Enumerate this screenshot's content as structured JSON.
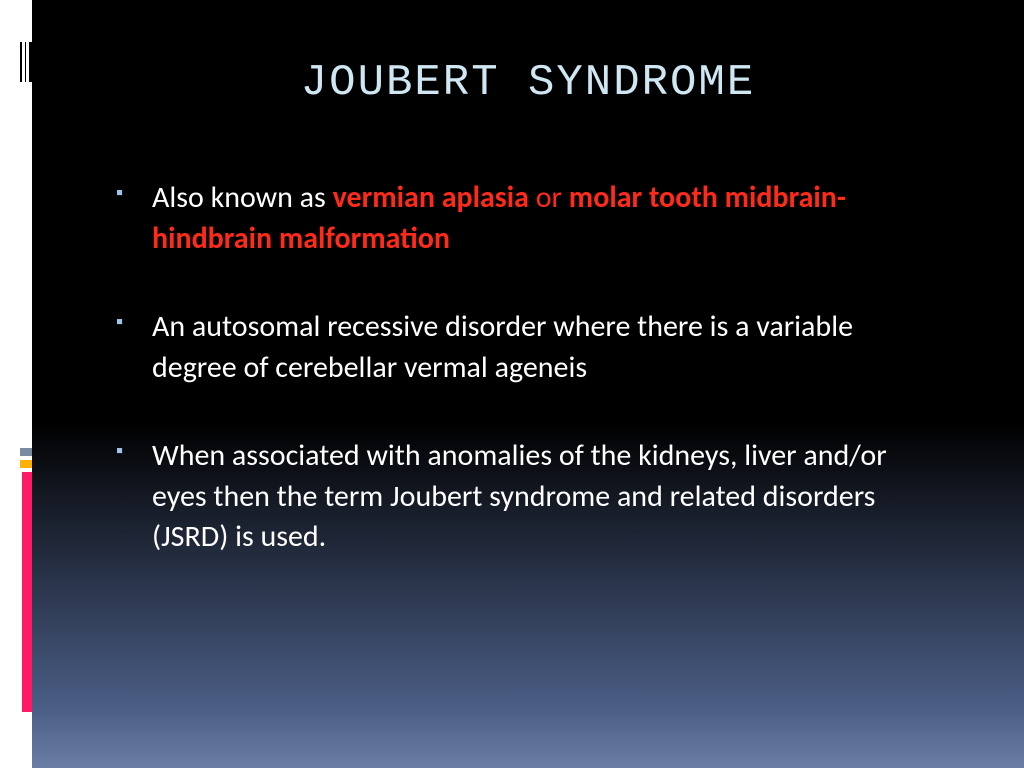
{
  "colors": {
    "title_color": "#cfe7f2",
    "body_color": "#ffffff",
    "highlight_color": "#ff2a1a",
    "bullet_marker_color": "#9fc5e8",
    "bg_top": "#000000",
    "bg_bottom": "#6a7da4",
    "left_margin_bg": "#ffffff",
    "deco_stripe_grey": "#7a8aa0",
    "deco_stripe_yellow": "#ffb000",
    "deco_stripe_pink": "#ff1a66"
  },
  "typography": {
    "title_font": "Consolas monospace",
    "title_size_pt": 32,
    "body_font": "Segoe UI / Calibri sans-serif",
    "body_size_pt": 22
  },
  "slide": {
    "title": "JOUBERT SYNDROME",
    "bullets": [
      {
        "segments": [
          {
            "text": "Also known as ",
            "style": "plain"
          },
          {
            "text": "vermian aplasia",
            "style": "hl-bold"
          },
          {
            "text": " or ",
            "style": "hl"
          },
          {
            "text": "molar tooth midbrain-hindbrain malformation",
            "style": "hl-bold"
          }
        ]
      },
      {
        "segments": [
          {
            "text": "An autosomal recessive disorder where there is a variable degree of cerebellar vermal ageneis",
            "style": "plain"
          }
        ]
      },
      {
        "segments": [
          {
            "text": "When associated with anomalies of the kidneys, liver and/or eyes then the term Joubert syndrome and related disorders (JSRD) is used.",
            "style": "plain"
          }
        ]
      }
    ]
  }
}
